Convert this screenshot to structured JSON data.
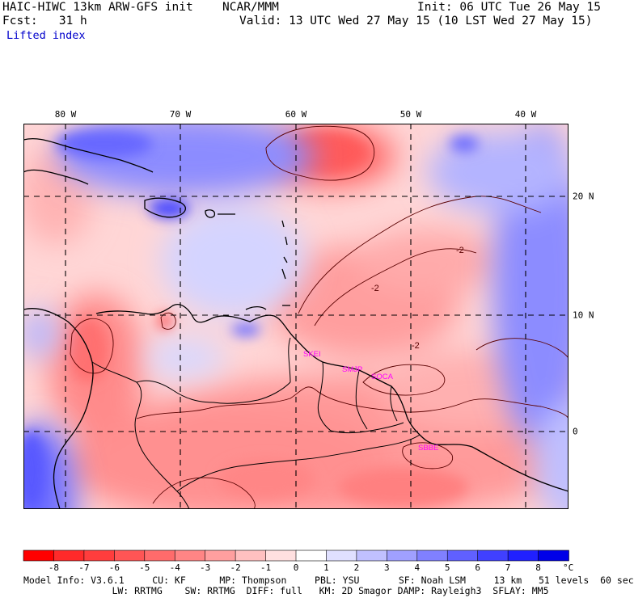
{
  "header": {
    "model_title": "HAIC-HIWC 13km ARW-GFS init",
    "org": "NCAR/MMM",
    "init": "Init: 06 UTC Tue 26 May 15",
    "fcst": "Fcst:   31 h",
    "valid": "Valid: 13 UTC Wed 27 May 15 (10 LST Wed 27 May 15)",
    "field": "Lifted index"
  },
  "map": {
    "lon_labels": [
      "80 W",
      "70 W",
      "60 W",
      "50 W",
      "40 W"
    ],
    "lat_labels": [
      "20 N",
      "10 N",
      "0"
    ],
    "contour_labels": [
      "-2",
      "-2",
      "-2"
    ],
    "stations": [
      "SKEI",
      "SMJP",
      "SOCA",
      "SBBE"
    ],
    "colors": {
      "gridline": "#000000",
      "coast": "#000000",
      "contour": "#5a0000",
      "station": "#ff00ff"
    }
  },
  "colorbar": {
    "labels": [
      "-8",
      "-7",
      "-6",
      "-5",
      "-4",
      "-3",
      "-2",
      "-1",
      "0",
      "1",
      "2",
      "3",
      "4",
      "5",
      "6",
      "7",
      "8"
    ],
    "unit": "°C",
    "colors": [
      "#ff0000",
      "#ff2a2a",
      "#ff3d3d",
      "#ff5555",
      "#ff6b6b",
      "#ff8585",
      "#ff9f9f",
      "#ffc0c0",
      "#ffe0e0",
      "#ffffff",
      "#e0e0ff",
      "#c0c0ff",
      "#a0a0ff",
      "#8080ff",
      "#6060ff",
      "#4040ff",
      "#2020ff",
      "#0000e8"
    ]
  },
  "footer": {
    "line1": "Model Info: V3.6.1     CU: KF      MP: Thompson     PBL: YSU       SF: Noah LSM     13 km   51 levels  60 sec",
    "line2": "       LW: RRTMG    SW: RRTMG  DIFF: full   KM: 2D Smagor DAMP: Rayleigh3  SFLAY: MM5"
  }
}
